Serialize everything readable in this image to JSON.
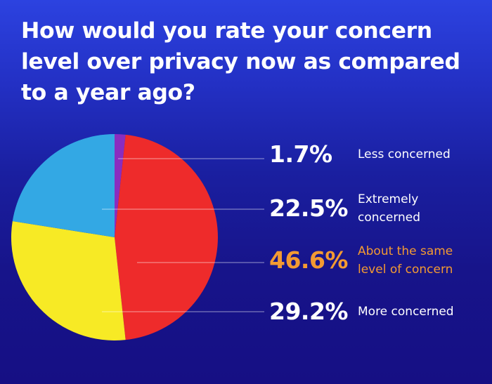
{
  "chart_data": {
    "type": "pie",
    "title": "How would you rate your concern level over privacy now as compared to a year ago?",
    "slices": [
      {
        "label": "Less concerned",
        "value": 1.7,
        "value_label": "1.7%",
        "color": "#8a2dbf",
        "text_color": "#ffffff"
      },
      {
        "label": "About the same level of concern",
        "value": 46.6,
        "value_label": "46.6%",
        "color": "#ee2b2b",
        "text_color": "#f39a32"
      },
      {
        "label": "More concerned",
        "value": 29.2,
        "value_label": "29.2%",
        "color": "#f7ea25",
        "text_color": "#ffffff"
      },
      {
        "label": "Extremely concerned",
        "value": 22.5,
        "value_label": "22.5%",
        "color": "#33a8e4",
        "text_color": "#ffffff"
      }
    ],
    "legend_order": [
      "Less concerned",
      "Extremely concerned",
      "About the same level of concern",
      "More concerned"
    ],
    "start": "top",
    "direction": "clockwise",
    "legend_placement": "right"
  },
  "colors": {
    "background_top": "#2c42e0",
    "background_bottom": "#160f84",
    "highlight": "#f39a32",
    "leader_line": "#ffffff"
  }
}
